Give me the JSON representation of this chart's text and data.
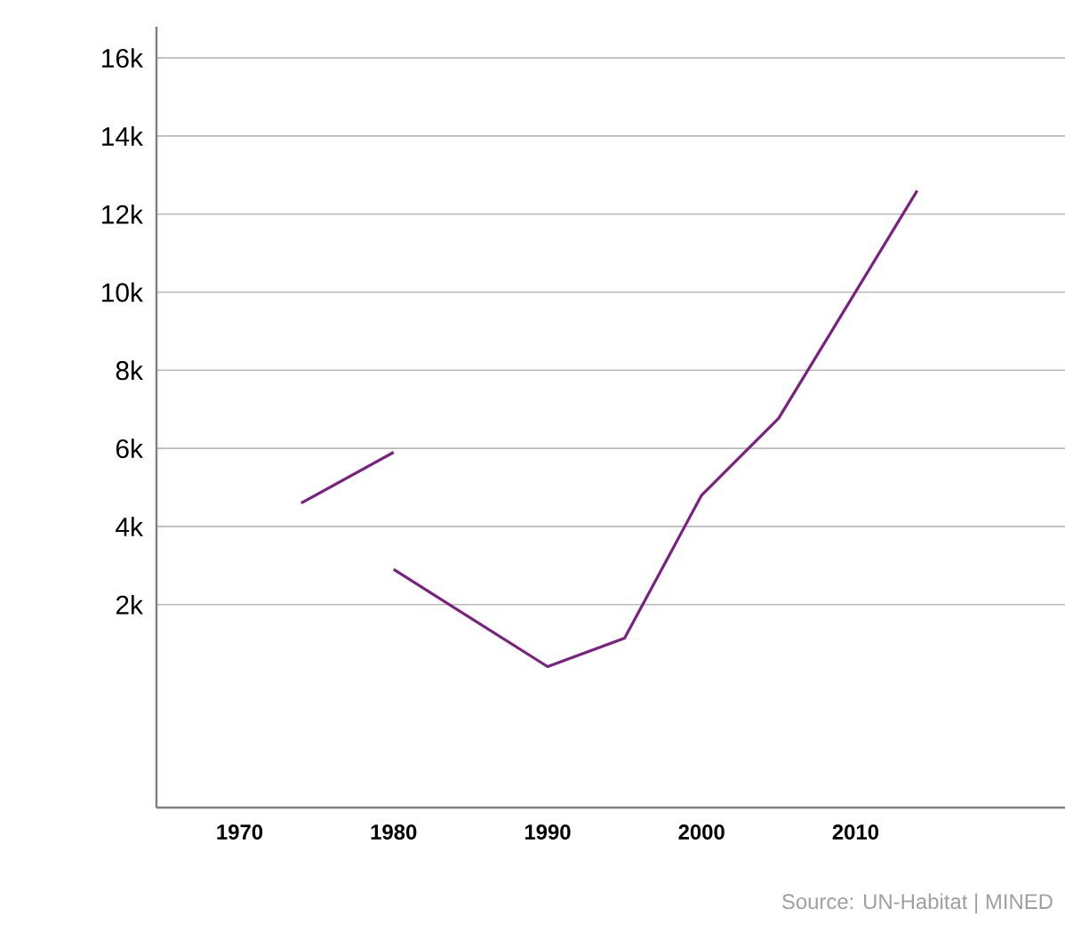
{
  "chart_data": {
    "type": "line",
    "series": [
      {
        "color": "#7b1f82",
        "x": [
          1974,
          1980
        ],
        "values": [
          4600,
          5900
        ]
      },
      {
        "color": "#7b1f82",
        "x": [
          1980,
          1990,
          1995,
          2000,
          2005,
          2014
        ],
        "values": [
          2900,
          410,
          1140,
          4800,
          6770,
          12600
        ]
      }
    ],
    "xlim": [
      1964.6,
      2023.6
    ],
    "xticks": [
      1970,
      1980,
      1990,
      2000,
      2010
    ],
    "ylim": [
      -3200,
      16800
    ],
    "yticks": [
      {
        "value": 2000,
        "label": "2k"
      },
      {
        "value": 4000,
        "label": "4k"
      },
      {
        "value": 6000,
        "label": "6k"
      },
      {
        "value": 8000,
        "label": "8k"
      },
      {
        "value": 10000,
        "label": "10k"
      },
      {
        "value": 12000,
        "label": "12k"
      },
      {
        "value": 14000,
        "label": "14k"
      },
      {
        "value": 16000,
        "label": "16k"
      }
    ],
    "grid": "y",
    "annotations": [
      "Source: UN-Habitat | MINED"
    ]
  }
}
